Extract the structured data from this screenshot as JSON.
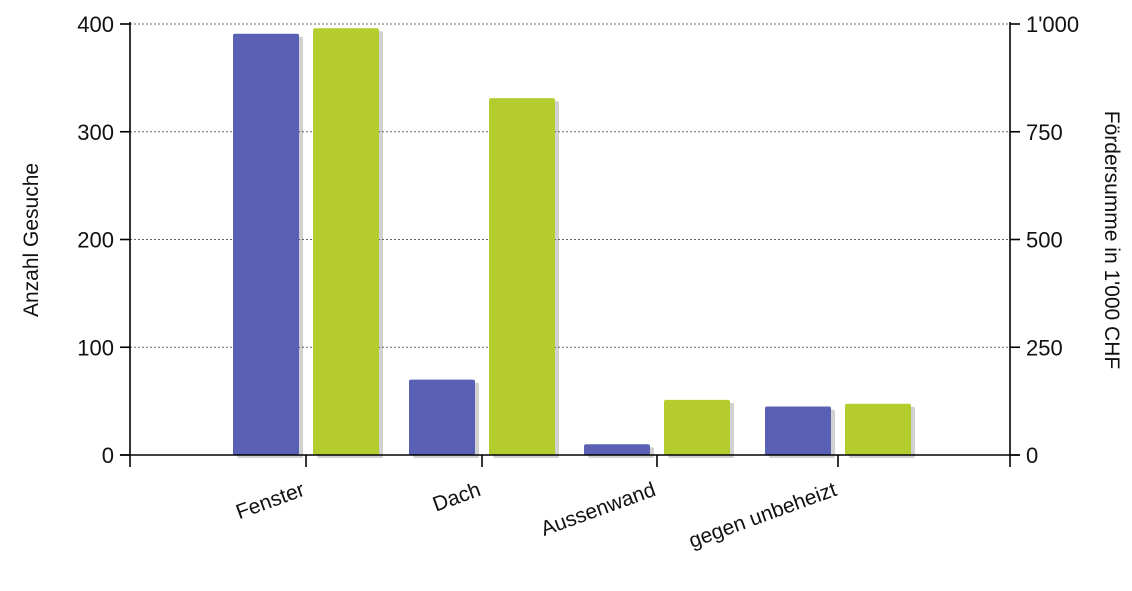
{
  "chart_data": {
    "type": "bar",
    "categories": [
      "Fenster",
      "Dach",
      "Aussenwand",
      "gegen unbeheizt"
    ],
    "series": [
      {
        "axis": "left",
        "color": "#5a60b3",
        "values": [
          391,
          70,
          10,
          45
        ]
      },
      {
        "axis": "right",
        "color": "#b5cc2e",
        "values": [
          990,
          828,
          128,
          119
        ]
      }
    ],
    "ylabel": "Anzahl Gesuche",
    "ylim": [
      0,
      400
    ],
    "yticks": [
      "0",
      "100",
      "200",
      "300",
      "400"
    ],
    "ylabel_right": "Fördersumme in 1'000 CHF",
    "ylim_right": [
      0,
      1000
    ],
    "yticks_right": [
      "0",
      "250",
      "500",
      "750",
      "1'000"
    ],
    "grid": true
  }
}
